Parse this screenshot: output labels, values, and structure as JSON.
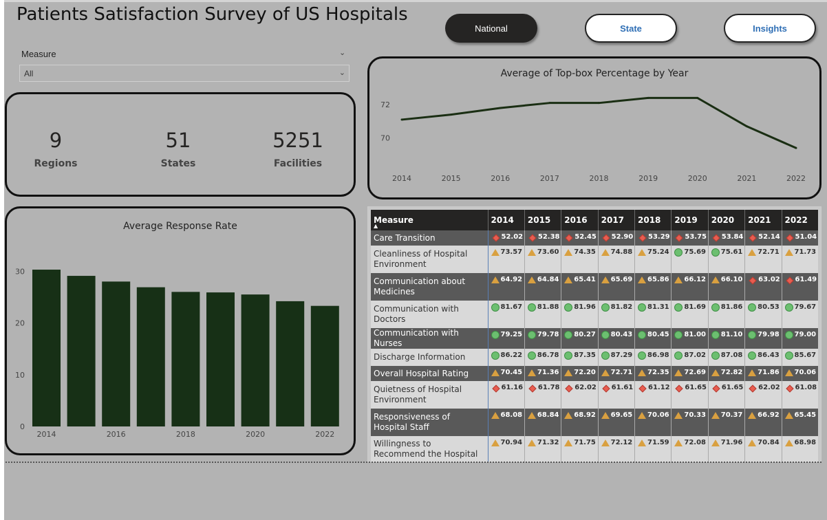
{
  "title": "Patients Satisfaction Survey of US Hospitals",
  "nav": {
    "national": "National",
    "state": "State",
    "insights": "Insights"
  },
  "slicer": {
    "label": "Measure",
    "value": "All"
  },
  "kpis": [
    {
      "value": "9",
      "label": "Regions"
    },
    {
      "value": "51",
      "label": "States"
    },
    {
      "value": "5251",
      "label": "Facilities"
    }
  ],
  "chart_data": [
    {
      "type": "line",
      "title": "Average of Top-box Percentage by Year",
      "x": [
        "2014",
        "2015",
        "2016",
        "2017",
        "2018",
        "2019",
        "2020",
        "2021",
        "2022"
      ],
      "values": [
        71.1,
        71.4,
        71.8,
        72.1,
        72.1,
        72.4,
        72.4,
        70.7,
        69.4
      ],
      "yticks": [
        "70",
        "72"
      ],
      "ylim": [
        68.5,
        73.2
      ],
      "color": "#1a2e13"
    },
    {
      "type": "bar",
      "title": "Average Response Rate",
      "categories": [
        "2014",
        "2015",
        "2016",
        "2017",
        "2018",
        "2019",
        "2020",
        "2021",
        "2022"
      ],
      "xtick_labels": [
        "2014",
        "",
        "2016",
        "",
        "2018",
        "",
        "2020",
        "",
        "2022"
      ],
      "values": [
        30.3,
        29.1,
        28.0,
        26.9,
        26.0,
        25.9,
        25.5,
        24.2,
        23.3
      ],
      "yticks": [
        "0",
        "10",
        "20",
        "30"
      ],
      "ylim": [
        0,
        31.5
      ],
      "color": "#173016"
    }
  ],
  "matrix": {
    "header": "Measure",
    "years": [
      "2014",
      "2015",
      "2016",
      "2017",
      "2018",
      "2019",
      "2020",
      "2021",
      "2022"
    ],
    "rows": [
      {
        "measure": "Care Transition",
        "values": [
          "52.02",
          "52.38",
          "52.45",
          "52.90",
          "53.29",
          "53.75",
          "53.84",
          "52.14",
          "51.04"
        ],
        "icons": [
          "dia",
          "dia",
          "dia",
          "dia",
          "dia",
          "dia",
          "dia",
          "dia",
          "dia"
        ]
      },
      {
        "measure": "Cleanliness of Hospital Environment",
        "values": [
          "73.57",
          "73.60",
          "74.35",
          "74.88",
          "75.24",
          "75.69",
          "75.61",
          "72.71",
          "71.73"
        ],
        "icons": [
          "tri",
          "tri",
          "tri",
          "tri",
          "tri",
          "cir",
          "cir",
          "tri",
          "tri"
        ]
      },
      {
        "measure": "Communication about Medicines",
        "values": [
          "64.92",
          "64.84",
          "65.41",
          "65.69",
          "65.86",
          "66.12",
          "66.10",
          "63.02",
          "61.49"
        ],
        "icons": [
          "tri",
          "tri",
          "tri",
          "tri",
          "tri",
          "tri",
          "tri",
          "dia",
          "dia"
        ]
      },
      {
        "measure": "Communication with Doctors",
        "values": [
          "81.67",
          "81.88",
          "81.96",
          "81.82",
          "81.31",
          "81.69",
          "81.86",
          "80.53",
          "79.67"
        ],
        "icons": [
          "cir",
          "cir",
          "cir",
          "cir",
          "cir",
          "cir",
          "cir",
          "cir",
          "cir"
        ]
      },
      {
        "measure": "Communication with Nurses",
        "values": [
          "79.25",
          "79.78",
          "80.27",
          "80.43",
          "80.45",
          "81.00",
          "81.10",
          "79.98",
          "79.00"
        ],
        "icons": [
          "cir",
          "cir",
          "cir",
          "cir",
          "cir",
          "cir",
          "cir",
          "cir",
          "cir"
        ]
      },
      {
        "measure": "Discharge Information",
        "values": [
          "86.22",
          "86.78",
          "87.35",
          "87.29",
          "86.98",
          "87.02",
          "87.08",
          "86.43",
          "85.67"
        ],
        "icons": [
          "cir",
          "cir",
          "cir",
          "cir",
          "cir",
          "cir",
          "cir",
          "cir",
          "cir"
        ]
      },
      {
        "measure": "Overall Hospital Rating",
        "values": [
          "70.45",
          "71.36",
          "72.20",
          "72.71",
          "72.35",
          "72.69",
          "72.82",
          "71.86",
          "70.06"
        ],
        "icons": [
          "tri",
          "tri",
          "tri",
          "tri",
          "tri",
          "tri",
          "tri",
          "tri",
          "tri"
        ]
      },
      {
        "measure": "Quietness of Hospital Environment",
        "values": [
          "61.16",
          "61.78",
          "62.02",
          "61.61",
          "61.12",
          "61.65",
          "61.65",
          "62.02",
          "61.08"
        ],
        "icons": [
          "dia",
          "dia",
          "dia",
          "dia",
          "dia",
          "dia",
          "dia",
          "dia",
          "dia"
        ]
      },
      {
        "measure": "Responsiveness of Hospital Staff",
        "values": [
          "68.08",
          "68.84",
          "68.92",
          "69.65",
          "70.06",
          "70.33",
          "70.37",
          "66.92",
          "65.45"
        ],
        "icons": [
          "tri",
          "tri",
          "tri",
          "tri",
          "tri",
          "tri",
          "tri",
          "tri",
          "tri"
        ]
      },
      {
        "measure": "Willingness to Recommend the Hospital",
        "values": [
          "70.94",
          "71.32",
          "71.75",
          "72.12",
          "71.59",
          "72.08",
          "71.96",
          "70.84",
          "68.98"
        ],
        "icons": [
          "tri",
          "tri",
          "tri",
          "tri",
          "tri",
          "tri",
          "tri",
          "tri",
          "tri"
        ]
      }
    ]
  }
}
